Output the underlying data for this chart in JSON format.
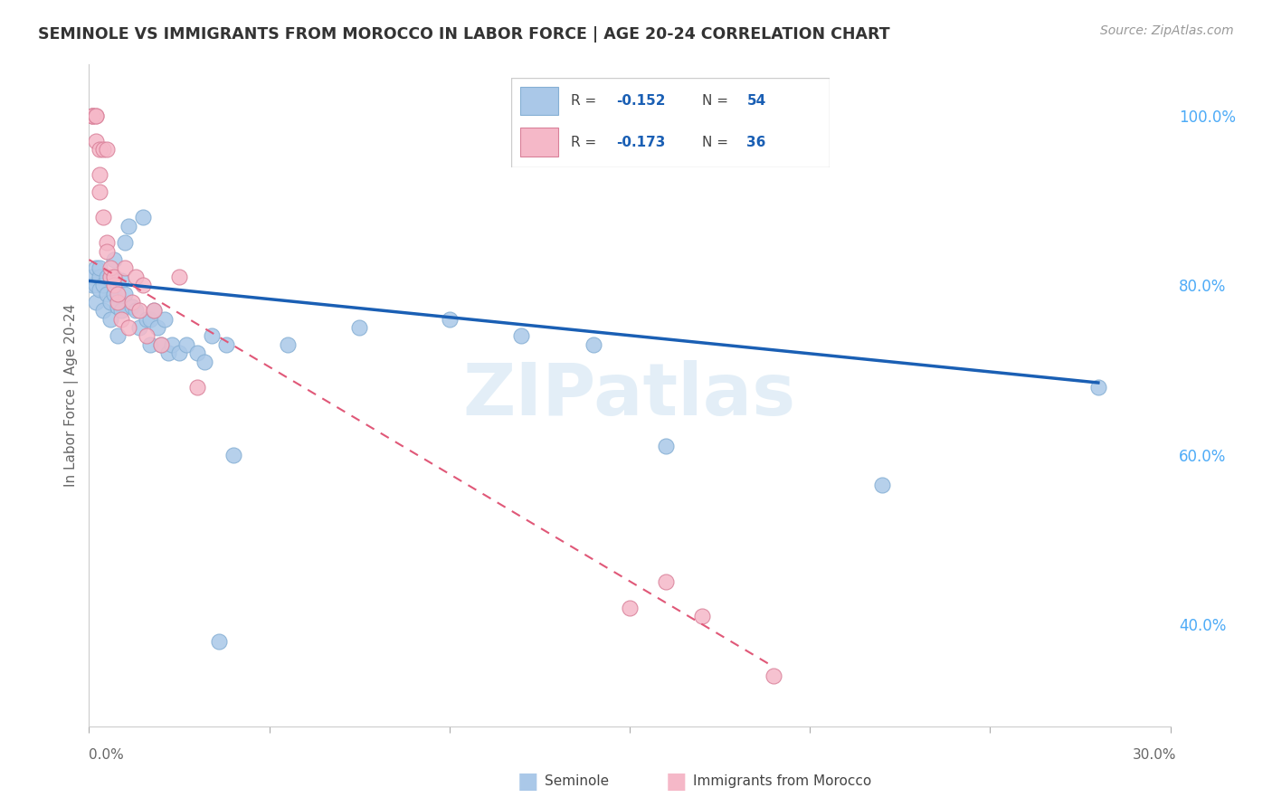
{
  "title": "SEMINOLE VS IMMIGRANTS FROM MOROCCO IN LABOR FORCE | AGE 20-24 CORRELATION CHART",
  "source_text": "Source: ZipAtlas.com",
  "ylabel": "In Labor Force | Age 20-24",
  "legend_label1": "Seminole",
  "legend_label2": "Immigrants from Morocco",
  "R1": -0.152,
  "N1": 54,
  "R2": -0.173,
  "N2": 36,
  "blue_scatter_color": "#aac8e8",
  "blue_line_color": "#1a5fb4",
  "pink_scatter_color": "#f5b8c8",
  "pink_line_color": "#e05878",
  "right_axis_color": "#4dabf7",
  "watermark_color": "#c8dff0",
  "grid_color": "#e0e0e0",
  "xlim": [
    0.0,
    0.3
  ],
  "ylim": [
    0.28,
    1.06
  ],
  "right_yticks": [
    0.4,
    0.6,
    0.8,
    1.0
  ],
  "right_ytick_labels": [
    "40.0%",
    "60.0%",
    "80.0%",
    "100.0%"
  ],
  "blue_x": [
    0.001,
    0.001,
    0.002,
    0.002,
    0.002,
    0.003,
    0.003,
    0.003,
    0.004,
    0.004,
    0.005,
    0.005,
    0.006,
    0.006,
    0.006,
    0.007,
    0.007,
    0.007,
    0.008,
    0.008,
    0.009,
    0.009,
    0.01,
    0.01,
    0.011,
    0.012,
    0.013,
    0.014,
    0.015,
    0.016,
    0.017,
    0.017,
    0.018,
    0.019,
    0.02,
    0.021,
    0.022,
    0.023,
    0.025,
    0.027,
    0.03,
    0.032,
    0.034,
    0.036,
    0.038,
    0.04,
    0.055,
    0.075,
    0.1,
    0.12,
    0.14,
    0.16,
    0.22,
    0.28
  ],
  "blue_y": [
    0.8,
    0.81,
    0.78,
    0.8,
    0.82,
    0.795,
    0.81,
    0.82,
    0.8,
    0.77,
    0.81,
    0.79,
    0.81,
    0.78,
    0.76,
    0.83,
    0.79,
    0.81,
    0.775,
    0.74,
    0.805,
    0.77,
    0.85,
    0.79,
    0.87,
    0.775,
    0.77,
    0.75,
    0.88,
    0.76,
    0.73,
    0.76,
    0.77,
    0.75,
    0.73,
    0.76,
    0.72,
    0.73,
    0.72,
    0.73,
    0.72,
    0.71,
    0.74,
    0.38,
    0.73,
    0.6,
    0.73,
    0.75,
    0.76,
    0.74,
    0.73,
    0.61,
    0.565,
    0.68
  ],
  "pink_x": [
    0.001,
    0.001,
    0.001,
    0.002,
    0.002,
    0.002,
    0.003,
    0.003,
    0.003,
    0.004,
    0.004,
    0.005,
    0.005,
    0.005,
    0.006,
    0.006,
    0.007,
    0.007,
    0.008,
    0.008,
    0.009,
    0.01,
    0.011,
    0.012,
    0.013,
    0.014,
    0.015,
    0.016,
    0.018,
    0.02,
    0.025,
    0.03,
    0.15,
    0.16,
    0.17,
    0.19
  ],
  "pink_y": [
    1.0,
    1.0,
    1.0,
    1.0,
    1.0,
    0.97,
    0.96,
    0.93,
    0.91,
    0.88,
    0.96,
    0.85,
    0.84,
    0.96,
    0.81,
    0.82,
    0.8,
    0.81,
    0.78,
    0.79,
    0.76,
    0.82,
    0.75,
    0.78,
    0.81,
    0.77,
    0.8,
    0.74,
    0.77,
    0.73,
    0.81,
    0.68,
    0.42,
    0.45,
    0.41,
    0.34
  ]
}
